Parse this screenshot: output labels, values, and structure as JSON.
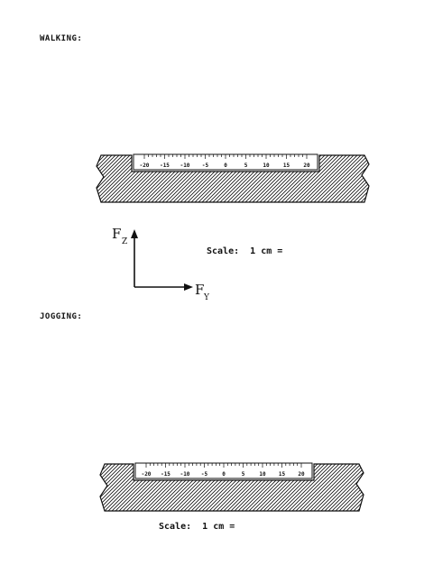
{
  "walking": {
    "section_label": "WALKING:",
    "scale_label": "Scale:  1 cm =",
    "ruler_ticks": [
      "-20",
      "-15",
      "-10",
      "-5",
      "0",
      "5",
      "10",
      "15",
      "20"
    ]
  },
  "jogging": {
    "section_label": "JOGGING:",
    "scale_label": "Scale:  1 cm =",
    "ruler_ticks": [
      "-20",
      "-15",
      "-10",
      "-5",
      "0",
      "5",
      "10",
      "15",
      "20"
    ]
  },
  "axes": {
    "vertical_label": "F",
    "vertical_subscript": "Z",
    "horizontal_label": "F",
    "horizontal_subscript": "Y"
  },
  "colors": {
    "ink": "#111111",
    "paper": "#ffffff"
  }
}
